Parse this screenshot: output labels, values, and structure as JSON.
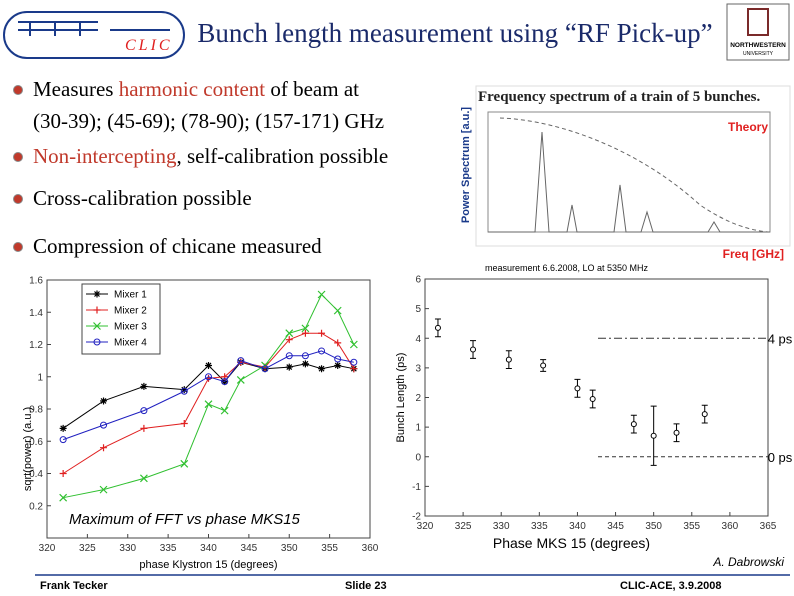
{
  "header": {
    "title": "Bunch length measurement using “RF Pick-up”",
    "logo_left": "CLIC",
    "logo_right": "NORTHWESTERN",
    "logo_right_sub": "UNIVERSITY"
  },
  "bullets": [
    {
      "lines": [
        [
          {
            "text": "Measures "
          },
          {
            "text": "harmonic content",
            "color": "#c0392b"
          },
          {
            "text": " of beam at"
          }
        ],
        [
          {
            "text": "(30-39); (45-69); (78-90); (157-171) GHz"
          }
        ]
      ]
    },
    {
      "lines": [
        [
          {
            "text": "Non-intercepting",
            "color": "#c0392b"
          },
          {
            "text": ", self-calibration possible"
          }
        ]
      ]
    },
    {
      "lines": [
        [
          {
            "text": "Cross-calibration possible"
          }
        ]
      ]
    },
    {
      "lines": [
        [
          {
            "text": "Compression of chicane measured"
          }
        ]
      ]
    }
  ],
  "spectrum": {
    "title": "Frequency spectrum of a train of 5 bunches.",
    "annotation": "Theory",
    "y_label": "Power Spectrum [a.u.]",
    "x_label": "Freq [GHz]"
  },
  "chart_data": [
    {
      "type": "line",
      "y_label": "sqrt(power) (a.u.)",
      "x_label": "phase Klystron 15 (degrees)",
      "annotation": "Maximum of FFT vs phase MKS15",
      "x": [
        322,
        327,
        332,
        337,
        340,
        342,
        344,
        347,
        350,
        352,
        354,
        356,
        358
      ],
      "xlim": [
        320,
        360
      ],
      "xticks": [
        320,
        325,
        330,
        335,
        340,
        345,
        350,
        355,
        360
      ],
      "ylim": [
        0,
        1.6
      ],
      "yticks": [
        0.2,
        0.4,
        0.6,
        0.8,
        1,
        1.2,
        1.4,
        1.6
      ],
      "legend": "upper left",
      "series": [
        {
          "name": "Mixer 1",
          "color": "#000000",
          "marker": "star",
          "values": [
            0.68,
            0.85,
            0.94,
            0.92,
            1.07,
            0.97,
            1.09,
            1.05,
            1.06,
            1.08,
            1.05,
            1.07,
            1.05
          ]
        },
        {
          "name": "Mixer 2",
          "color": "#e02020",
          "marker": "plus",
          "values": [
            0.4,
            0.56,
            0.68,
            0.71,
            0.99,
            1.0,
            1.09,
            1.06,
            1.23,
            1.27,
            1.27,
            1.21,
            1.05
          ]
        },
        {
          "name": "Mixer 3",
          "color": "#30c030",
          "marker": "cross",
          "values": [
            0.25,
            0.3,
            0.37,
            0.46,
            0.83,
            0.79,
            0.98,
            1.07,
            1.27,
            1.3,
            1.51,
            1.41,
            1.2
          ]
        },
        {
          "name": "Mixer 4",
          "color": "#2020c0",
          "marker": "circle",
          "values": [
            0.61,
            0.7,
            0.79,
            0.91,
            1.0,
            0.97,
            1.1,
            1.05,
            1.13,
            1.13,
            1.16,
            1.11,
            1.09
          ]
        }
      ]
    },
    {
      "type": "errorbar",
      "title": "measurement 6.6.2008, LO at 5350 MHz",
      "y_label": "Bunch Length (ps)",
      "x_label": "Phase MKS 15 (degrees)",
      "credit": "A. Dabrowski",
      "x": [
        321.7,
        326.3,
        331,
        335.5,
        340,
        342,
        347.4,
        350,
        353,
        356.7
      ],
      "values": [
        4.35,
        3.62,
        3.28,
        3.08,
        2.31,
        1.95,
        1.1,
        0.71,
        0.81,
        1.44
      ],
      "errors": [
        0.3,
        0.3,
        0.3,
        0.2,
        0.3,
        0.3,
        0.3,
        1.0,
        0.3,
        0.3
      ],
      "color": "#000000",
      "xlim": [
        320,
        365
      ],
      "xticks": [
        320,
        325,
        330,
        335,
        340,
        345,
        350,
        355,
        360,
        365
      ],
      "ylim": [
        -2,
        6
      ],
      "yticks": [
        -2,
        -1,
        0,
        1,
        2,
        3,
        4,
        5,
        6
      ],
      "references": [
        {
          "value": 4,
          "label": "4 ps",
          "style": "dashdot"
        },
        {
          "value": 0,
          "label": "0 ps",
          "style": "dash"
        }
      ]
    }
  ],
  "footer": {
    "left": "Frank Tecker",
    "center": "Slide 23",
    "right": "CLIC-ACE, 3.9.2008"
  }
}
